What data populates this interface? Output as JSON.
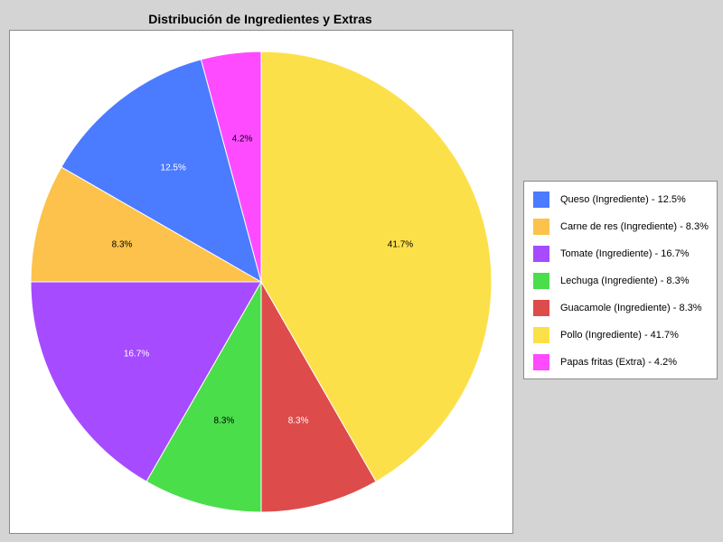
{
  "chart_data": {
    "type": "pie",
    "title": "Distribución de Ingredientes y Extras",
    "slices": [
      {
        "label": "Pollo (Ingrediente)",
        "value": 41.7,
        "display": "41.7%",
        "legend": "Pollo (Ingrediente) - 41.7%",
        "color": "#fce04a",
        "label_color": "#000000"
      },
      {
        "label": "Guacamole (Ingrediente)",
        "value": 8.3,
        "display": "8.3%",
        "legend": "Guacamole (Ingrediente) - 8.3%",
        "color": "#de4b4b",
        "label_color": "#ffffff"
      },
      {
        "label": "Lechuga (Ingrediente)",
        "value": 8.3,
        "display": "8.3%",
        "legend": "Lechuga (Ingrediente) - 8.3%",
        "color": "#4bde4b",
        "label_color": "#000000"
      },
      {
        "label": "Tomate (Ingrediente)",
        "value": 16.7,
        "display": "16.7%",
        "legend": "Tomate (Ingrediente) - 16.7%",
        "color": "#a64bff",
        "label_color": "#ffffff"
      },
      {
        "label": "Carne de res (Ingrediente)",
        "value": 8.3,
        "display": "8.3%",
        "legend": "Carne de res (Ingrediente) - 8.3%",
        "color": "#fcc24b",
        "label_color": "#000000"
      },
      {
        "label": "Queso (Ingrediente)",
        "value": 12.5,
        "display": "12.5%",
        "legend": "Queso (Ingrediente) - 12.5%",
        "color": "#4b7bff",
        "label_color": "#ffffff"
      },
      {
        "label": "Papas fritas (Extra)",
        "value": 4.2,
        "display": "4.2%",
        "legend": "Papas fritas (Extra) - 4.2%",
        "color": "#ff4bff",
        "label_color": "#000000"
      }
    ],
    "legend_order": [
      5,
      4,
      3,
      2,
      1,
      0,
      6
    ],
    "legend_position": "right"
  }
}
